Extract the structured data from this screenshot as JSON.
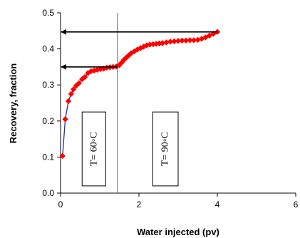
{
  "chart_data": {
    "type": "line",
    "xlabel": "Water injected (pv)",
    "ylabel": "Recovery, fraction",
    "xlim": [
      0,
      6
    ],
    "ylim": [
      0,
      0.5
    ],
    "xticks": [
      0,
      2,
      4,
      6
    ],
    "xtick_labels": [
      "0",
      "2",
      "4",
      "6"
    ],
    "yticks": [
      0.0,
      0.1,
      0.2,
      0.3,
      0.4,
      0.5
    ],
    "ytick_labels": [
      "0.0",
      "0.1",
      "0.2",
      "0.3",
      "0.4",
      "0.5"
    ],
    "grid": false,
    "series": [
      {
        "line_color": "#1f2f9e",
        "marker_color": "#ff0000",
        "marker": "diamond",
        "x": [
          0.05,
          0.12,
          0.2,
          0.27,
          0.33,
          0.4,
          0.47,
          0.55,
          0.62,
          0.7,
          0.78,
          0.86,
          0.94,
          1.02,
          1.1,
          1.18,
          1.26,
          1.34,
          1.42,
          1.5,
          1.56,
          1.62,
          1.68,
          1.74,
          1.8,
          1.88,
          1.96,
          2.04,
          2.12,
          2.2,
          2.28,
          2.36,
          2.44,
          2.52,
          2.6,
          2.7,
          2.8,
          2.9,
          3.0,
          3.1,
          3.2,
          3.3,
          3.4,
          3.5,
          3.6,
          3.7,
          3.8,
          3.9,
          4.0
        ],
        "y": [
          0.103,
          0.205,
          0.255,
          0.275,
          0.288,
          0.298,
          0.305,
          0.316,
          0.322,
          0.333,
          0.338,
          0.34,
          0.342,
          0.344,
          0.345,
          0.348,
          0.349,
          0.35,
          0.351,
          0.355,
          0.362,
          0.37,
          0.376,
          0.382,
          0.388,
          0.393,
          0.398,
          0.402,
          0.406,
          0.41,
          0.412,
          0.413,
          0.414,
          0.415,
          0.416,
          0.418,
          0.42,
          0.421,
          0.422,
          0.423,
          0.423,
          0.424,
          0.424,
          0.425,
          0.428,
          0.432,
          0.437,
          0.442,
          0.447
        ]
      }
    ],
    "vertical_line": {
      "x": 1.45,
      "color": "#808080"
    },
    "arrows": [
      {
        "from_x": 4.0,
        "to_x": 0.0,
        "y": 0.447,
        "direction": "left"
      },
      {
        "from_x": 1.45,
        "to_x": 0.0,
        "y": 0.35,
        "direction": "left"
      }
    ],
    "annotations": [
      {
        "text": "T= 60◦C",
        "x_left": 0.55,
        "x_right": 1.15,
        "y_top": 0.225,
        "y_bottom": 0.02,
        "rotation": -90
      },
      {
        "text": "T= 90◦C",
        "x_left": 2.35,
        "x_right": 3.0,
        "y_top": 0.225,
        "y_bottom": 0.02,
        "rotation": -90
      }
    ]
  }
}
